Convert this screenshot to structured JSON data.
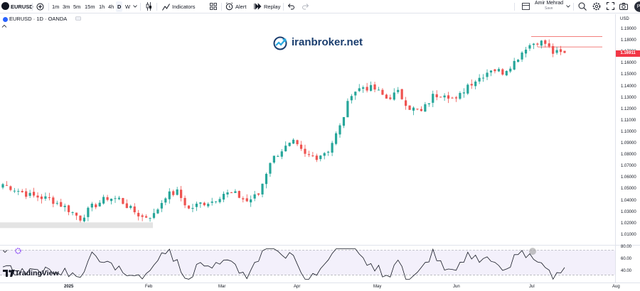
{
  "toolbar": {
    "symbol": "EURUSD",
    "timeframes": [
      "1m",
      "3m",
      "5m",
      "15m",
      "1h",
      "4h",
      "D",
      "W"
    ],
    "active_timeframe": "D",
    "indicators_label": "Indicators",
    "alert_label": "Alert",
    "replay_label": "Replay",
    "user_name": "Amir Mehrad",
    "save_label": "Save",
    "avatar_initials": "Pu"
  },
  "legend": {
    "title": "EURUSD · 1D · OANDA"
  },
  "watermark": {
    "text": "iranbroker.net"
  },
  "branding": {
    "logo_text": "TradingView"
  },
  "price_axis": {
    "currency": "USD",
    "current_price": "1.16911",
    "labels": [
      "1.19000",
      "1.18000",
      "1.17000",
      "1.16000",
      "1.15000",
      "1.14000",
      "1.13000",
      "1.12000",
      "1.11000",
      "1.10000",
      "1.09000",
      "1.08000",
      "1.07000",
      "1.06000",
      "1.05000",
      "1.04000",
      "1.03000",
      "1.02000",
      "1.01000"
    ]
  },
  "indicator_axis": {
    "labels": [
      "80.00",
      "60.00",
      "40.00"
    ]
  },
  "time_axis": {
    "labels": [
      {
        "text": "2025",
        "bold": true
      },
      {
        "text": "Feb",
        "bold": false
      },
      {
        "text": "Mar",
        "bold": false
      },
      {
        "text": "Apr",
        "bold": false
      },
      {
        "text": "May",
        "bold": false
      },
      {
        "text": "Jun",
        "bold": false
      },
      {
        "text": "Jul",
        "bold": false
      },
      {
        "text": "Aug",
        "bold": false
      }
    ]
  },
  "chart_data": {
    "type": "candlestick",
    "symbol": "EURUSD",
    "interval": "1D",
    "source": "OANDA",
    "ylim": [
      1.005,
      1.195
    ],
    "last_price": 1.16911,
    "colors": {
      "up": "#26a69a",
      "down": "#ef5350"
    },
    "zone": {
      "from": 1.0165,
      "to": 1.0215,
      "color": "#e4e4e4"
    },
    "resistance_lines": [
      1.184,
      1.175
    ],
    "close_path": [
      [
        0,
        1.055
      ],
      [
        7,
        1.045
      ],
      [
        12,
        1.042
      ],
      [
        16,
        1.035
      ],
      [
        20,
        1.025
      ],
      [
        23,
        1.035
      ],
      [
        27,
        1.043
      ],
      [
        30,
        1.042
      ],
      [
        33,
        1.033
      ],
      [
        36,
        1.026
      ],
      [
        39,
        1.028
      ],
      [
        42,
        1.045
      ],
      [
        45,
        1.048
      ],
      [
        48,
        1.033
      ],
      [
        51,
        1.038
      ],
      [
        54,
        1.04
      ],
      [
        57,
        1.047
      ],
      [
        60,
        1.046
      ],
      [
        63,
        1.04
      ],
      [
        66,
        1.046
      ],
      [
        69,
        1.075
      ],
      [
        72,
        1.085
      ],
      [
        75,
        1.091
      ],
      [
        78,
        1.08
      ],
      [
        81,
        1.079
      ],
      [
        84,
        1.085
      ],
      [
        87,
        1.105
      ],
      [
        90,
        1.135
      ],
      [
        93,
        1.14
      ],
      [
        96,
        1.138
      ],
      [
        99,
        1.13
      ],
      [
        102,
        1.135
      ],
      [
        105,
        1.122
      ],
      [
        108,
        1.118
      ],
      [
        111,
        1.132
      ],
      [
        114,
        1.135
      ],
      [
        117,
        1.128
      ],
      [
        120,
        1.142
      ],
      [
        123,
        1.148
      ],
      [
        126,
        1.156
      ],
      [
        129,
        1.153
      ],
      [
        132,
        1.162
      ],
      [
        135,
        1.175
      ],
      [
        138,
        1.18
      ],
      [
        140,
        1.178
      ],
      [
        142,
        1.17
      ],
      [
        145,
        1.169
      ]
    ],
    "oscillator": {
      "lines": [
        80,
        60,
        40
      ],
      "ylim": [
        30,
        85
      ]
    }
  }
}
